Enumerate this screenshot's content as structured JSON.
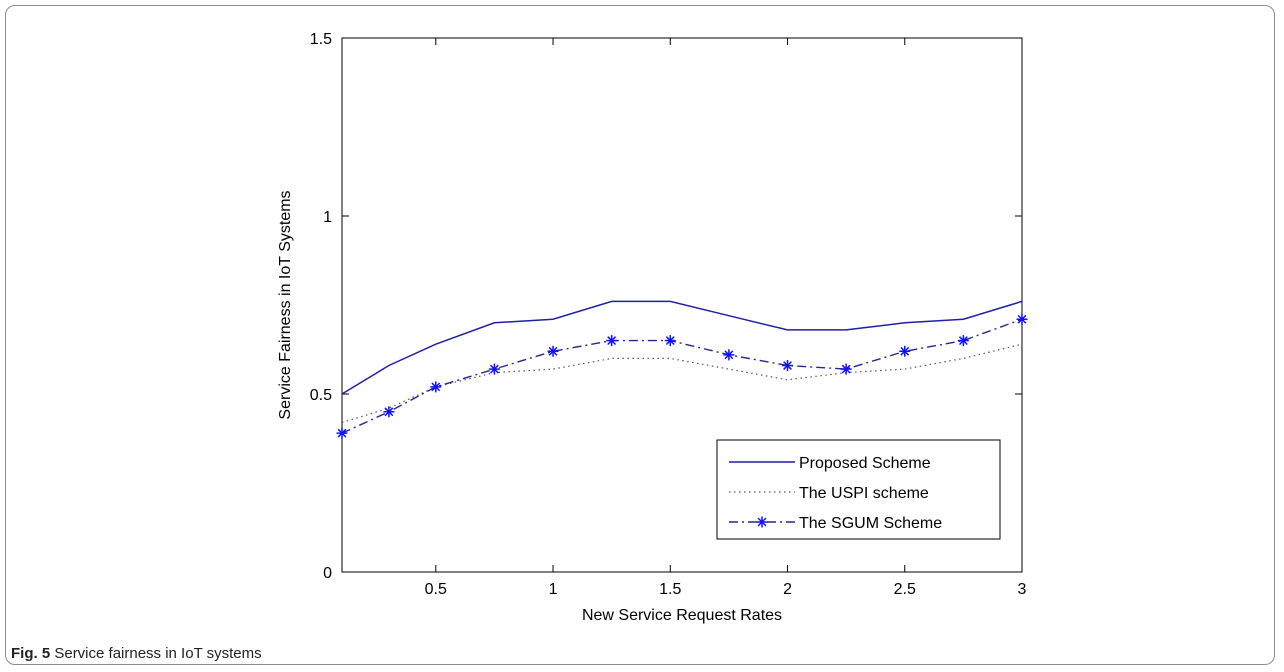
{
  "caption": {
    "label": "Fig. 5",
    "text": "Service fairness in IoT systems"
  },
  "colors": {
    "proposed": "#1f1fa8",
    "uspi": "#555555",
    "sgum_line": "#1f2a8a",
    "sgum_marker": "#1010ff",
    "axis": "#000000"
  },
  "chart_data": {
    "type": "line",
    "title": "",
    "xlabel": "New Service Request Rates",
    "ylabel": "Service Fairness in IoT Systems",
    "xlim": [
      0.1,
      3.0
    ],
    "ylim": [
      0,
      1.5
    ],
    "xticks": [
      0.5,
      1,
      1.5,
      2,
      2.5,
      3
    ],
    "xtick_labels": [
      "0.5",
      "1",
      "1.5",
      "2",
      "2.5",
      "3"
    ],
    "yticks": [
      0,
      0.5,
      1,
      1.5
    ],
    "ytick_labels": [
      "0",
      "0.5",
      "1",
      "1.5"
    ],
    "grid": false,
    "legend_position": "bottom-right",
    "series": [
      {
        "name": "Proposed Scheme",
        "style": "solid",
        "marker": "none",
        "x": [
          0.1,
          0.3,
          0.5,
          0.75,
          1.0,
          1.25,
          1.5,
          1.75,
          2.0,
          2.25,
          2.5,
          2.75,
          3.0
        ],
        "y": [
          0.5,
          0.58,
          0.64,
          0.7,
          0.71,
          0.76,
          0.76,
          0.72,
          0.68,
          0.68,
          0.7,
          0.71,
          0.76
        ]
      },
      {
        "name": "The USPI scheme",
        "style": "dotted",
        "marker": "none",
        "x": [
          0.1,
          0.3,
          0.5,
          0.75,
          1.0,
          1.25,
          1.5,
          1.75,
          2.0,
          2.25,
          2.5,
          2.75,
          3.0
        ],
        "y": [
          0.42,
          0.46,
          0.52,
          0.56,
          0.57,
          0.6,
          0.6,
          0.57,
          0.54,
          0.56,
          0.57,
          0.6,
          0.64
        ]
      },
      {
        "name": "The SGUM Scheme",
        "style": "dashdot",
        "marker": "star",
        "x": [
          0.1,
          0.3,
          0.5,
          0.75,
          1.0,
          1.25,
          1.5,
          1.75,
          2.0,
          2.25,
          2.5,
          2.75,
          3.0
        ],
        "y": [
          0.39,
          0.45,
          0.52,
          0.57,
          0.62,
          0.65,
          0.65,
          0.61,
          0.58,
          0.57,
          0.62,
          0.65,
          0.71
        ]
      }
    ]
  }
}
